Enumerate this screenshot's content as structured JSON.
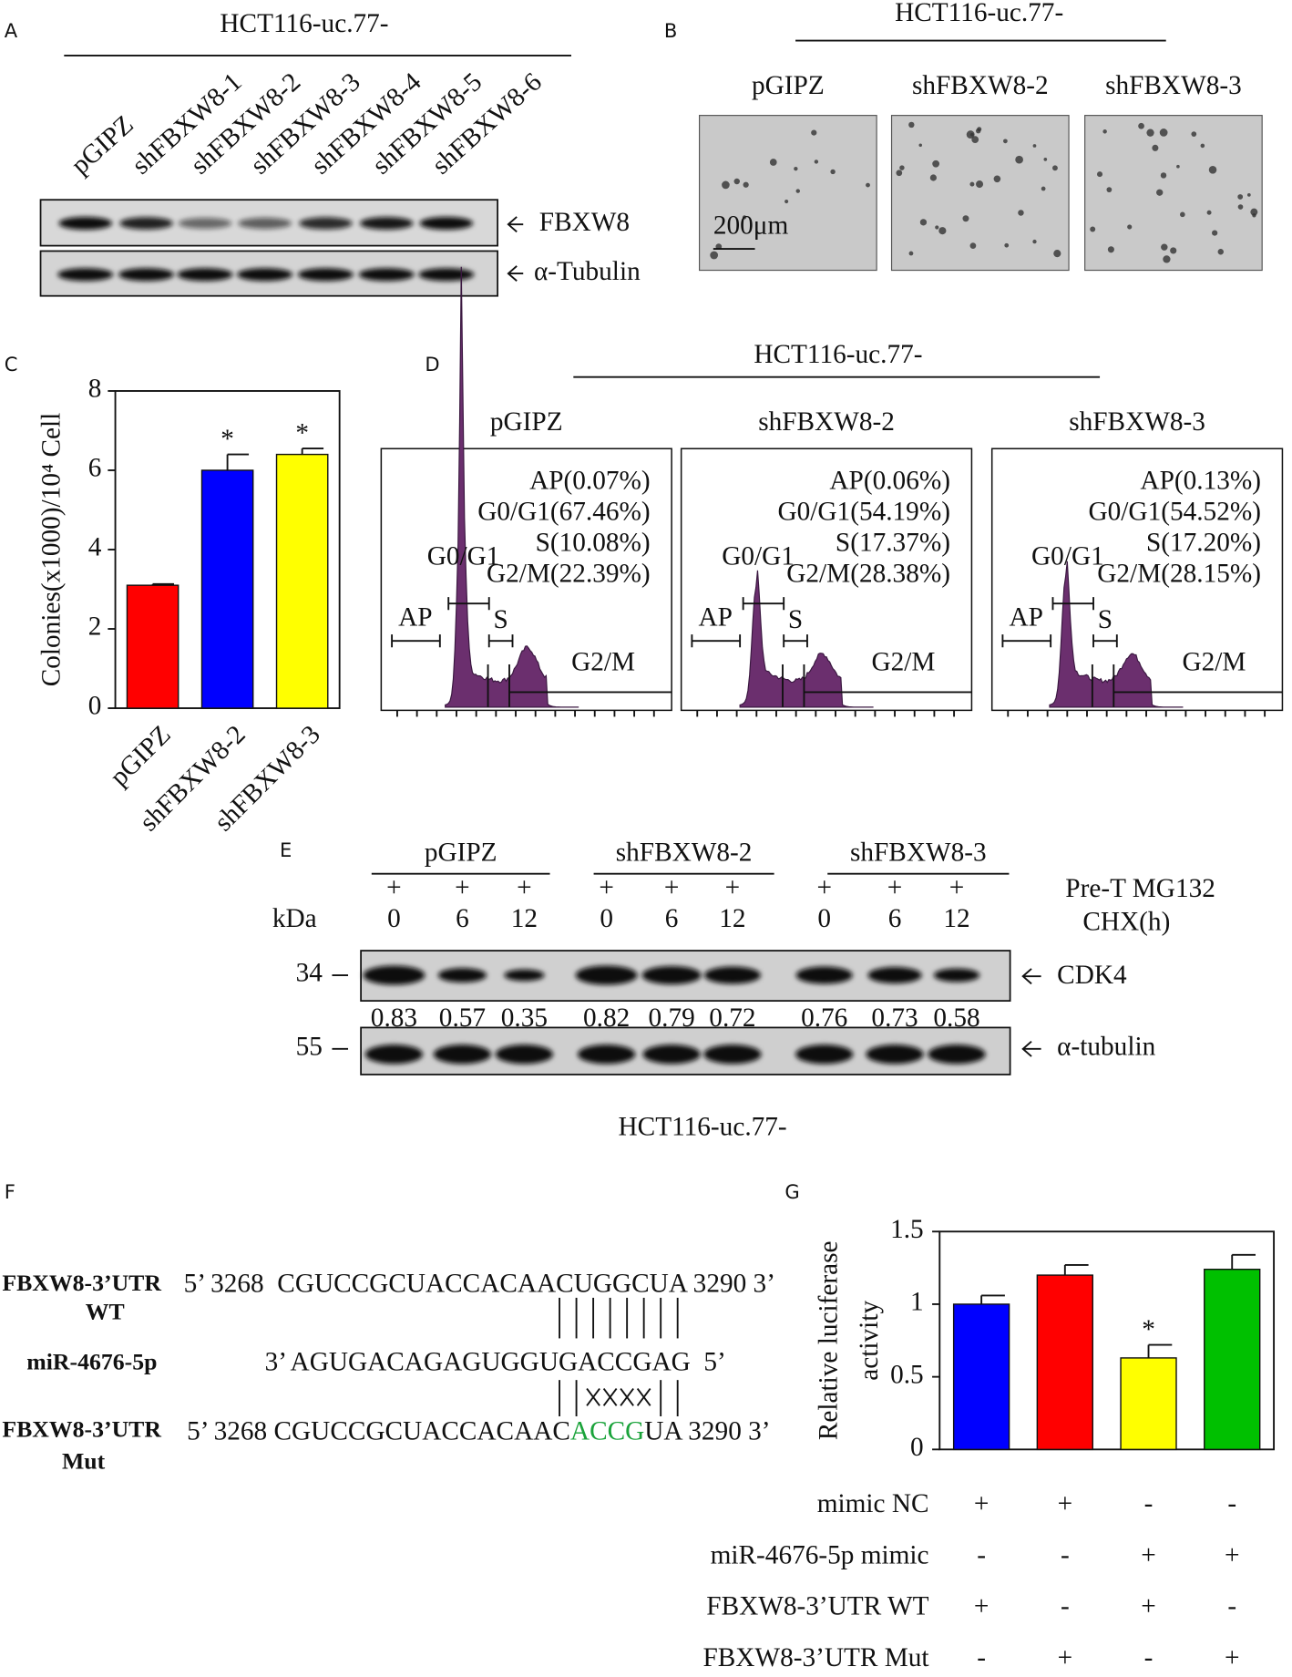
{
  "panel_a": {
    "label": "A",
    "title": "HCT116-uc.77-",
    "lanes": [
      "pGIPZ",
      "shFBXW8-1",
      "shFBXW8-2",
      "shFBXW8-3",
      "shFBXW8-4",
      "shFBXW8-5",
      "shFBXW8-6"
    ],
    "bands": [
      "FBXW8",
      "α-Tubulin"
    ]
  },
  "panel_b": {
    "label": "B",
    "title": "HCT116-uc.77-",
    "images": [
      "pGIPZ",
      "shFBXW8-2",
      "shFBXW8-3"
    ],
    "scale_bar": "200μm"
  },
  "panel_d": {
    "label": "D",
    "title": "HCT116-uc.77-",
    "histograms": [
      {
        "name": "pGIPZ",
        "stats": [
          "AP(0.07%)",
          "G0/G1(67.46%)",
          "S(10.08%)",
          "G2/M(22.39%)"
        ],
        "gates": [
          "AP",
          "G0/G1",
          "S",
          "G2/M"
        ]
      },
      {
        "name": "shFBXW8-2",
        "stats": [
          "AP(0.06%)",
          "G0/G1(54.19%)",
          "S(17.37%)",
          "G2/M(28.38%)"
        ],
        "gates": [
          "AP",
          "G0/G1",
          "S",
          "G2/M"
        ]
      },
      {
        "name": "shFBXW8-3",
        "stats": [
          "AP(0.13%)",
          "G0/G1(54.52%)",
          "S(17.20%)",
          "G2/M(28.15%)"
        ],
        "gates": [
          "AP",
          "G0/G1",
          "S",
          "G2/M"
        ]
      }
    ]
  },
  "panel_e": {
    "label": "E",
    "groups": [
      "pGIPZ",
      "shFBXW8-2",
      "shFBXW8-3"
    ],
    "pretreatment": [
      "+",
      "+",
      "+",
      "+",
      "+",
      "+",
      "+",
      "+",
      "+"
    ],
    "times": [
      0,
      6,
      12,
      0,
      6,
      12,
      0,
      6,
      12
    ],
    "ratios": [
      0.83,
      0.57,
      0.35,
      0.82,
      0.79,
      0.72,
      0.76,
      0.73,
      0.58
    ],
    "row_labels": [
      "Pre-T MG132",
      "CHX(h)"
    ],
    "kda_label": "kDa",
    "markers": [
      34,
      55
    ],
    "bands": [
      "CDK4",
      "α-tubulin"
    ],
    "caption": "HCT116-uc.77-"
  },
  "panel_f": {
    "label": "F",
    "wt": {
      "name": "FBXW8-3’UTR",
      "sub": "WT",
      "sequence": "5’ 3268  CGUCCGCUACCACAACUGGCUA 3290 3’"
    },
    "mirna": {
      "name": "miR-4676-5p",
      "sequence": "3’ AGUGACAGAGUGGUGACCGAG  5’"
    },
    "mut": {
      "name": "FBXW8-3’UTR",
      "sub": "Mut",
      "prefix": "5’ 3268 CGUCCGCUACCACAAC",
      "mutated": "ACCG",
      "suffix": "UA 3290 3’"
    }
  },
  "chart_data": [
    {
      "type": "bar",
      "panel_label": "C",
      "y_label": "Colonies(x1000)/10⁴ Cell",
      "categories": [
        "pGIPZ",
        "shFBXW8-2",
        "shFBXW8-3"
      ],
      "values": [
        3.1,
        6.0,
        6.4
      ],
      "errors": [
        0.03,
        0.4,
        0.15
      ],
      "significance": [
        null,
        "*",
        "*"
      ],
      "colors": [
        "#ff0000",
        "#0000ff",
        "#ffff00"
      ],
      "ylim": [
        0,
        8
      ],
      "yticks": [
        0,
        2,
        4,
        6,
        8
      ]
    },
    {
      "type": "bar",
      "panel_label": "G",
      "y_label": [
        "Relative luciferase",
        "activity"
      ],
      "categories": [
        null,
        null,
        null,
        null
      ],
      "values": [
        1.0,
        1.2,
        0.63,
        1.24
      ],
      "errors": [
        0.06,
        0.07,
        0.09,
        0.1
      ],
      "significance": [
        null,
        null,
        "*",
        null
      ],
      "colors": [
        "#0000ff",
        "#ff0000",
        "#ffff00",
        "#00c000"
      ],
      "ylim": [
        0,
        1.5
      ],
      "yticks": [
        0,
        0.5,
        1,
        1.5
      ],
      "conditions": [
        {
          "label": "mimic NC",
          "signs": [
            "+",
            "+",
            "-",
            "-"
          ]
        },
        {
          "label": "miR-4676-5p mimic",
          "signs": [
            "-",
            "-",
            "+",
            "+"
          ]
        },
        {
          "label": "FBXW8-3’UTR WT",
          "signs": [
            "+",
            "-",
            "+",
            "-"
          ]
        },
        {
          "label": "FBXW8-3’UTR Mut",
          "signs": [
            "-",
            "+",
            "-",
            "+"
          ]
        }
      ]
    }
  ]
}
